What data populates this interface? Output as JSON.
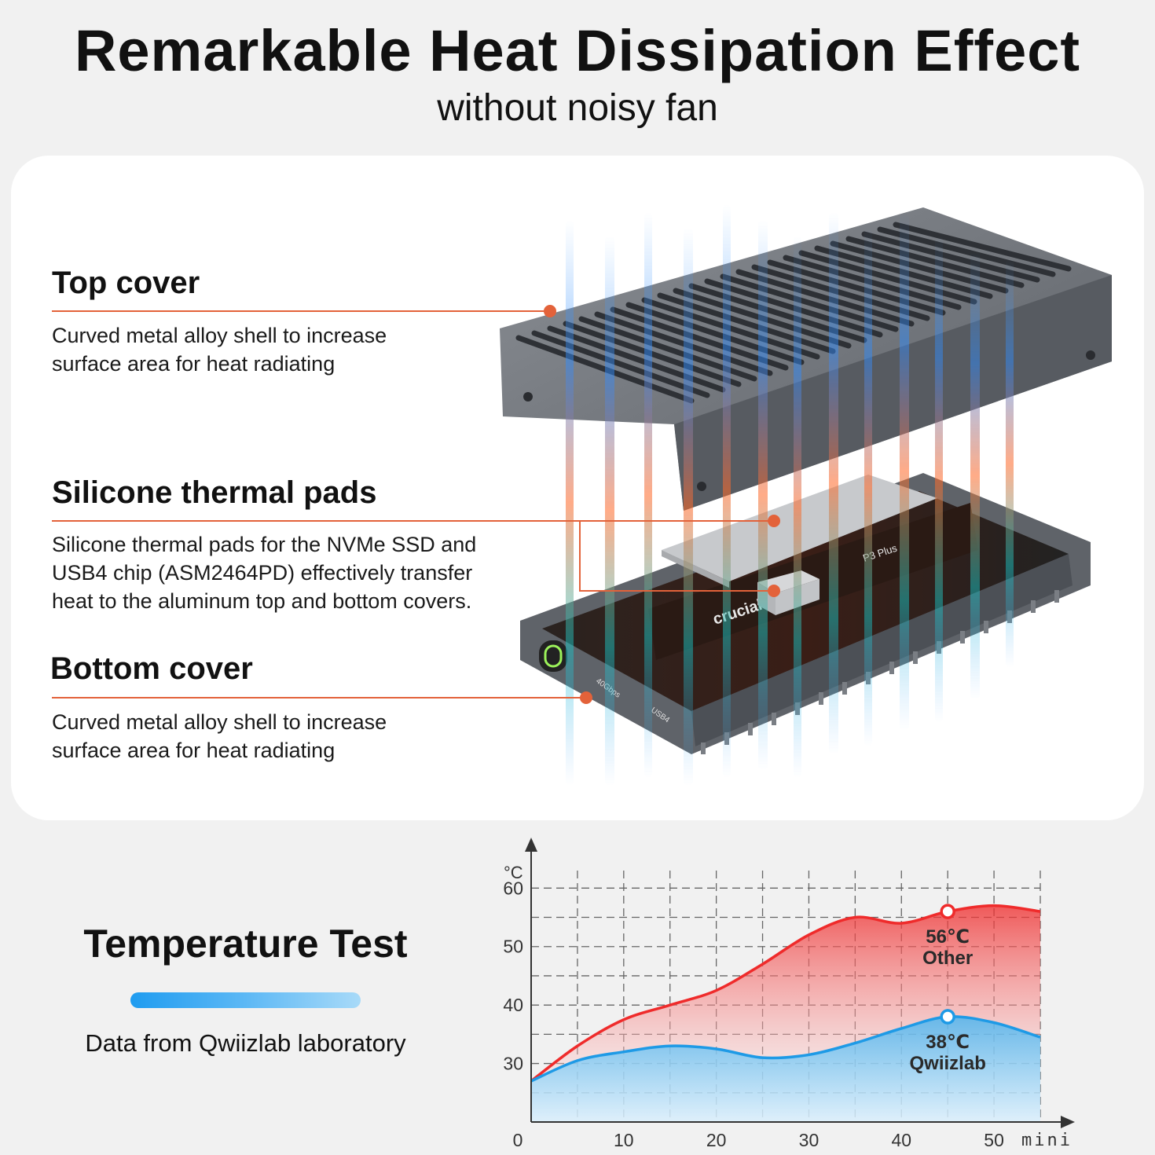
{
  "header": {
    "title": "Remarkable Heat Dissipation Effect",
    "subtitle": "without noisy fan"
  },
  "features": [
    {
      "title": "Top cover",
      "desc_lines": [
        "Curved metal alloy shell to increase",
        "surface area for heat radiating"
      ]
    },
    {
      "title": "Silicone thermal pads",
      "desc_lines": [
        "Silicone thermal pads for the NVMe SSD and",
        "USB4 chip (ASM2464PD) effectively transfer",
        "heat to the aluminum top and bottom covers."
      ]
    },
    {
      "title": "Bottom cover",
      "desc_lines": [
        "Curved metal alloy shell to increase",
        "surface area for heat radiating"
      ]
    }
  ],
  "product_labels": {
    "ssd_brand": "crucial",
    "ssd_model": "P3 Plus",
    "port_speed": "40Gbps",
    "port_type": "USB4"
  },
  "colors": {
    "accent_line": "#e3623a",
    "hot_red": "#ef2b2b",
    "cool_blue": "#1e9ae6",
    "metal": "#6b6f75"
  },
  "temperature_test": {
    "title": "Temperature Test",
    "source": "Data from Qwiizlab laboratory"
  },
  "chart_data": {
    "type": "area",
    "xlabel": "mini",
    "ylabel": "°C",
    "xlim": [
      0,
      55
    ],
    "ylim": [
      20,
      63
    ],
    "x_ticks": [
      0,
      10,
      20,
      30,
      40,
      50
    ],
    "y_ticks": [
      30,
      40,
      50,
      60
    ],
    "grid": true,
    "series": [
      {
        "name": "Other",
        "color": "#ef2b2b",
        "x": [
          0,
          5,
          10,
          15,
          20,
          25,
          30,
          35,
          40,
          45,
          50,
          55
        ],
        "y": [
          27,
          33,
          37.5,
          40,
          42.5,
          47,
          52,
          55,
          54,
          56,
          57,
          56
        ]
      },
      {
        "name": "Qwiizlab",
        "color": "#1e9ae6",
        "x": [
          0,
          5,
          10,
          15,
          20,
          25,
          30,
          35,
          40,
          45,
          50,
          55
        ],
        "y": [
          27,
          30.5,
          32,
          33,
          32.5,
          31,
          31.5,
          33.5,
          36,
          38,
          37,
          34.5
        ]
      }
    ],
    "annotations": [
      {
        "series": "Other",
        "x": 45,
        "y": 56,
        "value_label": "56℃",
        "name_label": "Other"
      },
      {
        "series": "Qwiizlab",
        "x": 45,
        "y": 38,
        "value_label": "38℃",
        "name_label": "Qwiizlab"
      }
    ]
  }
}
